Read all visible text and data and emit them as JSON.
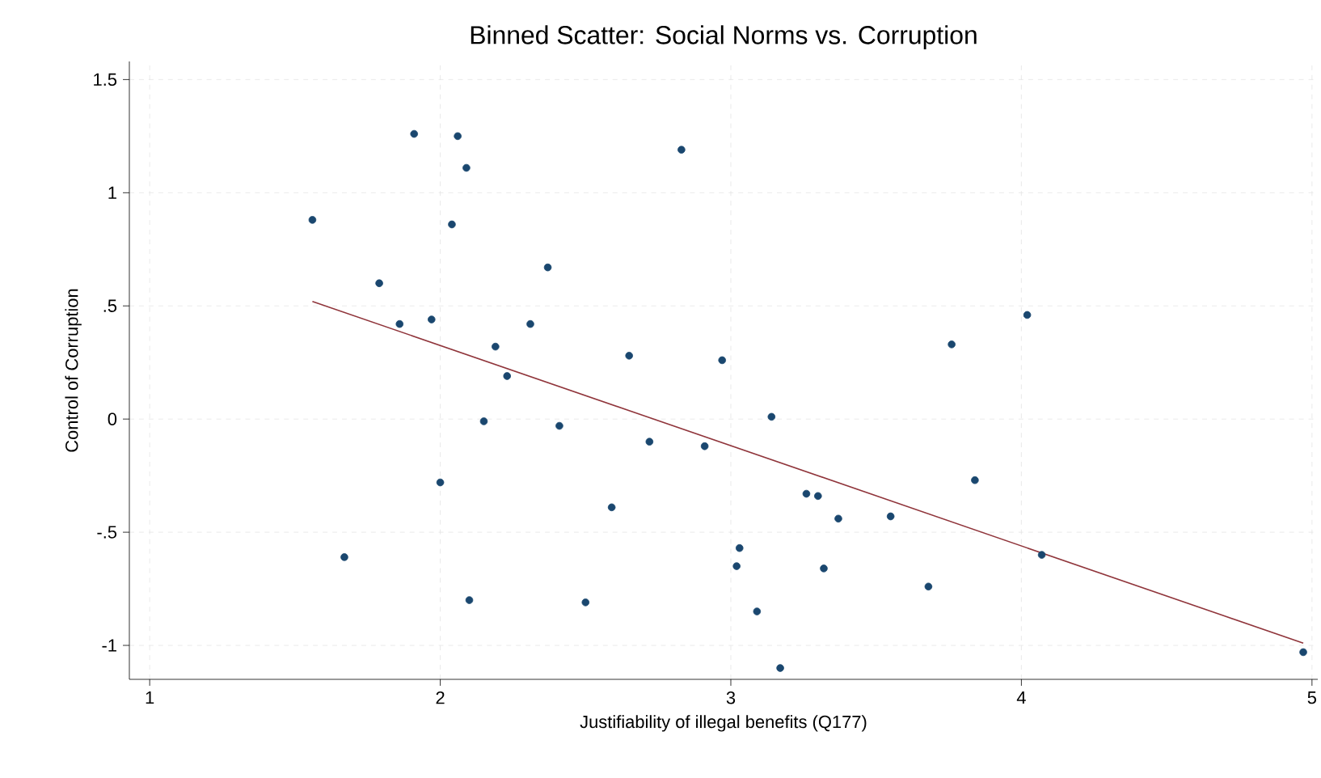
{
  "chart_data": {
    "type": "scatter",
    "title": "Binned Scatter: Social Norms vs. Corruption",
    "xlabel": "Justifiability of illegal benefits (Q177)",
    "ylabel": "Control of Corruption",
    "xlim": [
      0.93,
      5.02
    ],
    "ylim": [
      -1.15,
      1.58
    ],
    "xticks": [
      1,
      2,
      3,
      4,
      5
    ],
    "yticks": [
      {
        "value": -1,
        "label": "-1"
      },
      {
        "value": -0.5,
        "label": "-.5"
      },
      {
        "value": 0,
        "label": "0"
      },
      {
        "value": 0.5,
        "label": ".5"
      },
      {
        "value": 1,
        "label": "1"
      },
      {
        "value": 1.5,
        "label": "1.5"
      }
    ],
    "grid": true,
    "series": [
      {
        "color": "#1a476f",
        "marker": "circle",
        "x": [
          1.56,
          1.67,
          1.79,
          1.86,
          1.91,
          1.97,
          2.0,
          2.04,
          2.06,
          2.09,
          2.1,
          2.15,
          2.19,
          2.23,
          2.31,
          2.37,
          2.41,
          2.5,
          2.59,
          2.65,
          2.72,
          2.83,
          2.91,
          2.97,
          3.02,
          3.03,
          3.09,
          3.14,
          3.17,
          3.26,
          3.3,
          3.32,
          3.37,
          3.55,
          3.68,
          3.76,
          3.84,
          4.02,
          4.07,
          4.97
        ],
        "values": [
          0.88,
          -0.61,
          0.6,
          0.42,
          1.26,
          0.44,
          -0.28,
          0.86,
          1.25,
          1.11,
          -0.8,
          -0.01,
          0.32,
          0.19,
          0.42,
          0.67,
          -0.03,
          -0.81,
          -0.39,
          0.28,
          -0.1,
          1.19,
          -0.12,
          0.26,
          -0.65,
          -0.57,
          -0.85,
          0.01,
          -1.1,
          -0.33,
          -0.34,
          -0.66,
          -0.44,
          -0.43,
          -0.74,
          0.33,
          -0.27,
          0.46,
          -0.6,
          -1.03
        ]
      },
      {
        "type": "line",
        "color": "#90353b",
        "marker": "none",
        "line_style": "solid",
        "x": [
          1.56,
          4.97
        ],
        "values": [
          0.52,
          -0.99
        ]
      }
    ]
  }
}
